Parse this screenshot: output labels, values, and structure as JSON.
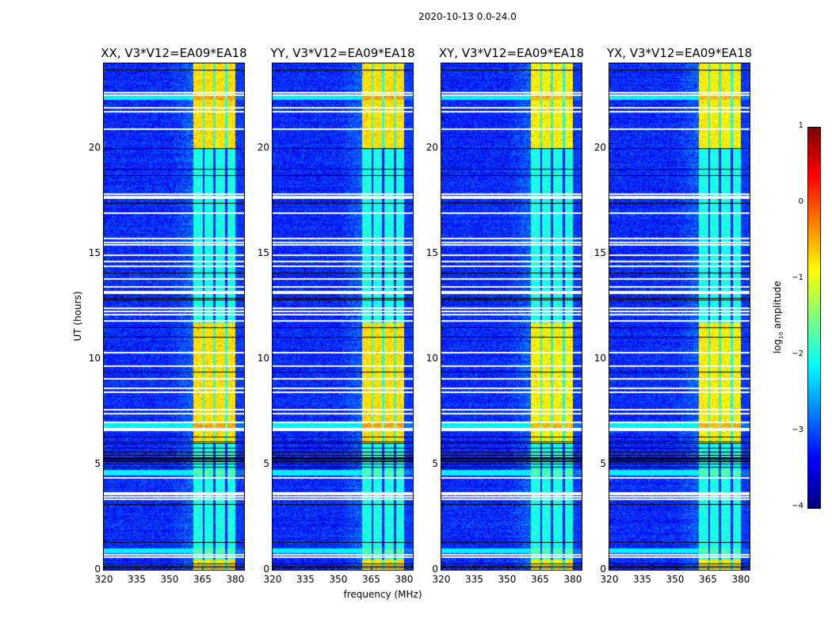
{
  "chart_data": {
    "type": "heatmap",
    "title": "2020-10-13 0.0-24.0",
    "xlabel": "frequency (MHz)",
    "ylabel": "UT (hours)",
    "xlim": [
      320,
      384
    ],
    "ylim": [
      0,
      24
    ],
    "xticks": [
      320,
      335,
      350,
      365,
      380
    ],
    "yticks": [
      0,
      5,
      10,
      15,
      20
    ],
    "panels": [
      {
        "title": "XX, V3*V12=EA09*EA18"
      },
      {
        "title": "YY, V3*V12=EA09*EA18"
      },
      {
        "title": "XY, V3*V12=EA09*EA18"
      },
      {
        "title": "YX, V3*V12=EA09*EA18"
      }
    ],
    "colorbar": {
      "label": "log10 amplitude",
      "label_base": "log",
      "label_sub": "10",
      "label_rest": " amplitude",
      "colormap": "jet",
      "range": [
        -4,
        1
      ],
      "ticks": [
        1,
        0,
        -1,
        -2,
        -3,
        -4
      ],
      "tick_labels": [
        "1",
        "0",
        "−1",
        "−2",
        "−3",
        "−4"
      ]
    },
    "background_level": -3.2,
    "rfi_band_mhz": [
      361,
      380
    ],
    "rfi_band_gaps_mhz": [
      365.5,
      370.5,
      375.8
    ],
    "rfi_bright_hours": [
      [
        20,
        24
      ],
      [
        6.0,
        11.7
      ],
      [
        0,
        0.5
      ]
    ],
    "rfi_bright_level": -0.9,
    "rfi_dim_level": -2.0,
    "flagged_hours_white": [
      22.6,
      22.5,
      21.9,
      21.7,
      20.9,
      17.8,
      17.7,
      17.6,
      16.9,
      15.7,
      15.5,
      15.4,
      14.9,
      14.6,
      14.4,
      13.8,
      13.4,
      13.2,
      13.1,
      12.4,
      12.25,
      12.1,
      11.8,
      10.3,
      9.66,
      9.05,
      8.6,
      8.4,
      7.6,
      7.4,
      7.0,
      6.7,
      6.6,
      4.35,
      3.65,
      3.55,
      3.45,
      3.35,
      0.7,
      0.6
    ],
    "flagged_hours_black": [
      23.7,
      20.0,
      19.0,
      18.7,
      17.4,
      14.1,
      12.9,
      12.8,
      11.5,
      11.05,
      9.4,
      6.3,
      6.1,
      6.0,
      5.8,
      5.6,
      5.45,
      5.35,
      5.3,
      5.25,
      5.2,
      5.15,
      5.05,
      4.9,
      3.1,
      1.3,
      0.3,
      0.2,
      0.1
    ],
    "broadband_hours": [
      22.4,
      6.85,
      4.6,
      0.9
    ]
  }
}
